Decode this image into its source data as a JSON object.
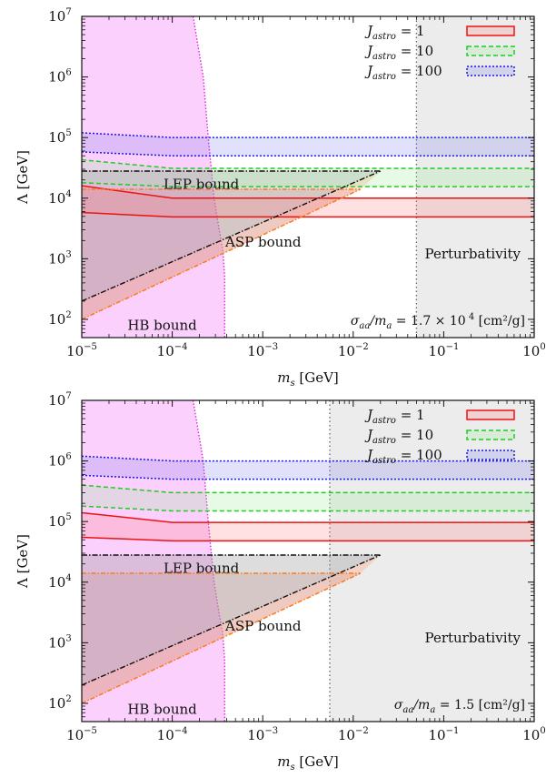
{
  "chart_data": [
    {
      "type": "area",
      "xlabel_main": "m",
      "xlabel_sub": "s",
      "xlabel_unit": "[GeV]",
      "ylabel": "Λ [GeV]",
      "xscale": "log",
      "yscale": "log",
      "xlim": [
        1e-05,
        1
      ],
      "ylim": [
        50,
        10000000.0
      ],
      "x_ticks": [
        {
          "base": "10",
          "exp": "−5"
        },
        {
          "base": "10",
          "exp": "−4"
        },
        {
          "base": "10",
          "exp": "−3"
        },
        {
          "base": "10",
          "exp": "−2"
        },
        {
          "base": "10",
          "exp": "−1"
        },
        {
          "base": "10",
          "exp": "0"
        }
      ],
      "y_ticks": [
        {
          "base": "10",
          "exp": "2"
        },
        {
          "base": "10",
          "exp": "3"
        },
        {
          "base": "10",
          "exp": "4"
        },
        {
          "base": "10",
          "exp": "5"
        },
        {
          "base": "10",
          "exp": "6"
        },
        {
          "base": "10",
          "exp": "7"
        }
      ],
      "legend_position": "top-right",
      "annotation": {
        "sigma": "σ",
        "sub1": "aa",
        "mid": "/m",
        "sub2": "a",
        "rest": " = 1.7 × 10",
        "sup": "  4",
        "unit": " [cm²/g]"
      },
      "series": [
        {
          "name_main": "J",
          "name_sub": "astro",
          "name_rest": " = 1",
          "color": "#ee1111",
          "fill": "rgba(255,120,120,0.22)",
          "dash": "",
          "band_x": [
            1e-05,
            1e-05,
            0.0001,
            1
          ],
          "band_upper": [
            19000.0,
            16000.0,
            10000.0,
            10000.0
          ],
          "band_lower": [
            6500.0,
            5800.0,
            4900.0,
            4900.0
          ]
        },
        {
          "name_main": "J",
          "name_sub": "astro",
          "name_rest": " = 10",
          "color": "#22cc22",
          "fill": "rgba(140,230,140,0.22)",
          "dash": "5,3",
          "band_x": [
            1e-05,
            1e-05,
            0.0001,
            1
          ],
          "band_upper": [
            55000.0,
            43000.0,
            31000.0,
            31000.0
          ],
          "band_lower": [
            20000.0,
            18000.0,
            15500.0,
            15500.0
          ]
        },
        {
          "name_main": "J",
          "name_sub": "astro",
          "name_rest": " = 100",
          "color": "#1a1ad6",
          "fill": "rgba(120,120,235,0.22)",
          "dash": "2,2",
          "band_x": [
            1e-05,
            1e-05,
            0.0001,
            1
          ],
          "band_upper": [
            140000.0,
            120000.0,
            100000.0,
            100000.0
          ],
          "band_lower": [
            62000.0,
            58000.0,
            50000.0,
            50000.0
          ]
        }
      ],
      "regions": {
        "hb": {
          "label": "HB bound",
          "x": [
            1e-05,
            0.00017,
            0.00022,
            0.00025,
            0.00029,
            0.00033,
            0.00036,
            0.00038,
            0.00038
          ],
          "y": [
            10000000.0,
            10000000.0,
            1000000.0,
            100000.0,
            10000.0,
            3000.0,
            1500.0,
            500.0,
            50
          ]
        },
        "lep": {
          "label": "LEP bound",
          "y": 28000.0,
          "x_start": 1e-05,
          "x_end": 0.02
        },
        "asp": {
          "label": "ASP bound",
          "upper_line": [
            [
              1e-05,
              200
            ],
            [
              0.02,
              28000.0
            ]
          ],
          "lower_line": [
            [
              1e-05,
              100
            ],
            [
              0.012,
              14000.0
            ]
          ],
          "flat_lower": 14000.0
        },
        "perturbativity": {
          "label": "Perturbativity",
          "x_start": 0.05
        }
      }
    },
    {
      "type": "area",
      "xlabel_main": "m",
      "xlabel_sub": "s",
      "xlabel_unit": "[GeV]",
      "ylabel": "Λ [GeV]",
      "xscale": "log",
      "yscale": "log",
      "xlim": [
        1e-05,
        1
      ],
      "ylim": [
        50,
        10000000.0
      ],
      "x_ticks": [
        {
          "base": "10",
          "exp": "−5"
        },
        {
          "base": "10",
          "exp": "−4"
        },
        {
          "base": "10",
          "exp": "−3"
        },
        {
          "base": "10",
          "exp": "−2"
        },
        {
          "base": "10",
          "exp": "−1"
        },
        {
          "base": "10",
          "exp": "0"
        }
      ],
      "y_ticks": [
        {
          "base": "10",
          "exp": "2"
        },
        {
          "base": "10",
          "exp": "3"
        },
        {
          "base": "10",
          "exp": "4"
        },
        {
          "base": "10",
          "exp": "5"
        },
        {
          "base": "10",
          "exp": "6"
        },
        {
          "base": "10",
          "exp": "7"
        }
      ],
      "legend_position": "top-right",
      "annotation": {
        "sigma": "σ",
        "sub1": "aa",
        "mid": "/m",
        "sub2": "a",
        "rest": " = 1.5",
        "sup": "",
        "unit": " [cm²/g]"
      },
      "series": [
        {
          "name_main": "J",
          "name_sub": "astro",
          "name_rest": " = 1",
          "color": "#ee1111",
          "fill": "rgba(255,120,120,0.22)",
          "dash": "",
          "band_x": [
            1e-05,
            1e-05,
            0.0001,
            1
          ],
          "band_upper": [
            170000.0,
            140000.0,
            97000.0,
            97000.0
          ],
          "band_lower": [
            60000.0,
            55000.0,
            48000.0,
            48000.0
          ]
        },
        {
          "name_main": "J",
          "name_sub": "astro",
          "name_rest": " = 10",
          "color": "#22cc22",
          "fill": "rgba(140,230,140,0.22)",
          "dash": "5,3",
          "band_x": [
            1e-05,
            1e-05,
            0.0001,
            1
          ],
          "band_upper": [
            480000.0,
            400000.0,
            300000.0,
            300000.0
          ],
          "band_lower": [
            200000.0,
            180000.0,
            150000.0,
            150000.0
          ]
        },
        {
          "name_main": "J",
          "name_sub": "astro",
          "name_rest": " = 100",
          "color": "#1a1ad6",
          "fill": "rgba(120,120,235,0.22)",
          "dash": "2,2",
          "band_x": [
            1e-05,
            1e-05,
            0.0001,
            1
          ],
          "band_upper": [
            1400000.0,
            1200000.0,
            1000000.0,
            1000000.0
          ],
          "band_lower": [
            620000.0,
            580000.0,
            500000.0,
            500000.0
          ]
        }
      ],
      "regions": {
        "hb": {
          "label": "HB bound",
          "x": [
            1e-05,
            0.00017,
            0.00022,
            0.00025,
            0.00029,
            0.00033,
            0.00036,
            0.00038,
            0.00038
          ],
          "y": [
            10000000.0,
            10000000.0,
            1000000.0,
            100000.0,
            10000.0,
            3000.0,
            1500.0,
            500.0,
            50
          ]
        },
        "lep": {
          "label": "LEP bound",
          "y": 28000.0,
          "x_start": 1e-05,
          "x_end": 0.02
        },
        "asp": {
          "label": "ASP bound",
          "upper_line": [
            [
              1e-05,
              200
            ],
            [
              0.02,
              28000.0
            ]
          ],
          "lower_line": [
            [
              1e-05,
              100
            ],
            [
              0.012,
              14000.0
            ]
          ],
          "flat_lower": 14000.0
        },
        "perturbativity": {
          "label": "Perturbativity",
          "x_start": 0.0055
        }
      }
    }
  ]
}
